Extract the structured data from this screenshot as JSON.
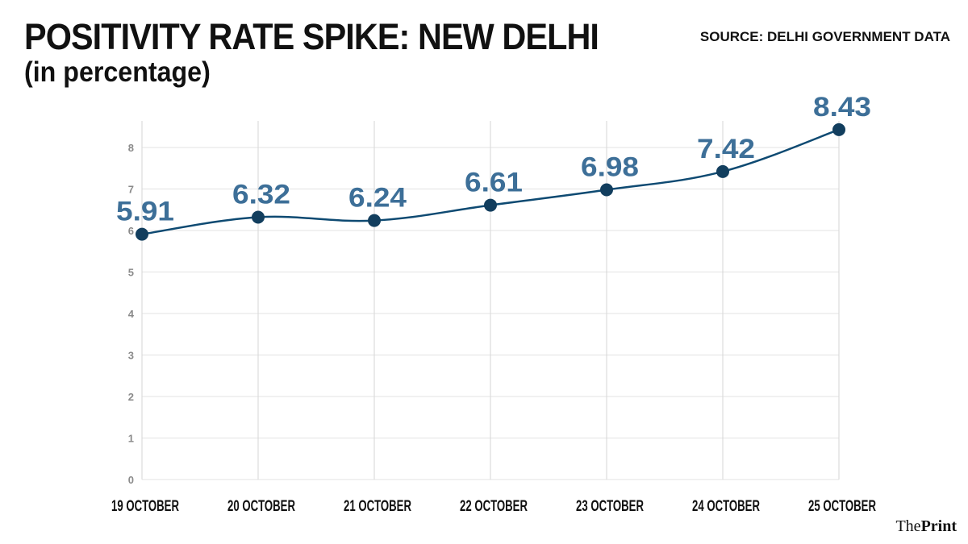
{
  "header": {
    "title": "POSITIVITY RATE SPIKE: NEW DELHI",
    "subtitle": "(in percentage)",
    "source": "SOURCE: DELHI GOVERNMENT DATA"
  },
  "brand": {
    "part1": "The",
    "part2": "Print"
  },
  "colors": {
    "line": "#0e4a72",
    "marker": "#123e5e",
    "label": "#3d6f98",
    "grid": "#e3e3e3"
  },
  "chart_data": {
    "type": "line",
    "title": "POSITIVITY RATE SPIKE: NEW DELHI",
    "subtitle": "(in percentage)",
    "categories": [
      "19 OCTOBER",
      "20 OCTOBER",
      "21 OCTOBER",
      "22 OCTOBER",
      "23 OCTOBER",
      "24 OCTOBER",
      "25 OCTOBER"
    ],
    "values": [
      5.91,
      6.32,
      6.24,
      6.61,
      6.98,
      7.42,
      8.43
    ],
    "data_labels": [
      "5.91",
      "6.32",
      "6.24",
      "6.61",
      "6.98",
      "7.42",
      "8.43"
    ],
    "yticks": [
      0,
      1,
      2,
      3,
      4,
      5,
      6,
      7,
      8
    ],
    "ylim": [
      0,
      8.5
    ],
    "grid": true,
    "legend": "none"
  }
}
